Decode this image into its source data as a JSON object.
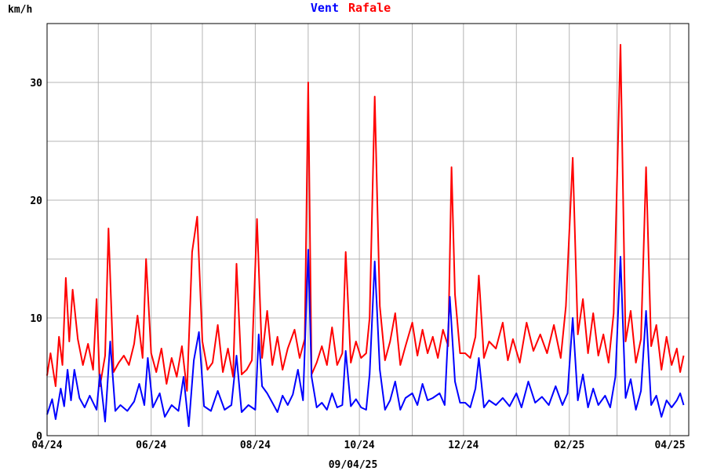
{
  "chart_data": {
    "type": "line",
    "unit_label": "km/h",
    "date_caption": "09/04/25",
    "grid": true,
    "legend_placement": "top-center",
    "x_range": [
      "2024-04-01",
      "2025-04-12"
    ],
    "ylim": [
      0,
      35
    ],
    "y_ticks": [
      0,
      10,
      20,
      30
    ],
    "x_ticks": [
      {
        "date": "2024-04-01",
        "label": "04/24"
      },
      {
        "date": "2024-06-01",
        "label": "06/24"
      },
      {
        "date": "2024-08-01",
        "label": "08/24"
      },
      {
        "date": "2024-10-01",
        "label": "10/24"
      },
      {
        "date": "2024-12-01",
        "label": "12/24"
      },
      {
        "date": "2025-02-01",
        "label": "02/25"
      },
      {
        "date": "2025-04-01",
        "label": "04/25"
      }
    ],
    "series": [
      {
        "name": "Vent",
        "color": "#0000ff",
        "points": [
          [
            "2024-04-01",
            1.8
          ],
          [
            "2024-04-04",
            3.1
          ],
          [
            "2024-04-06",
            1.4
          ],
          [
            "2024-04-09",
            4.0
          ],
          [
            "2024-04-11",
            2.5
          ],
          [
            "2024-04-13",
            5.6
          ],
          [
            "2024-04-15",
            3.0
          ],
          [
            "2024-04-17",
            5.6
          ],
          [
            "2024-04-20",
            3.2
          ],
          [
            "2024-04-23",
            2.4
          ],
          [
            "2024-04-26",
            3.4
          ],
          [
            "2024-04-30",
            2.2
          ],
          [
            "2024-05-02",
            5.2
          ],
          [
            "2024-05-05",
            1.2
          ],
          [
            "2024-05-08",
            8.0
          ],
          [
            "2024-05-11",
            2.1
          ],
          [
            "2024-05-14",
            2.6
          ],
          [
            "2024-05-18",
            2.1
          ],
          [
            "2024-05-22",
            2.9
          ],
          [
            "2024-05-25",
            4.4
          ],
          [
            "2024-05-28",
            2.6
          ],
          [
            "2024-05-30",
            6.6
          ],
          [
            "2024-06-02",
            2.4
          ],
          [
            "2024-06-06",
            3.6
          ],
          [
            "2024-06-09",
            1.6
          ],
          [
            "2024-06-13",
            2.6
          ],
          [
            "2024-06-17",
            2.1
          ],
          [
            "2024-06-20",
            5.0
          ],
          [
            "2024-06-23",
            0.8
          ],
          [
            "2024-06-26",
            6.4
          ],
          [
            "2024-06-29",
            8.8
          ],
          [
            "2024-07-02",
            2.5
          ],
          [
            "2024-07-06",
            2.1
          ],
          [
            "2024-07-10",
            3.8
          ],
          [
            "2024-07-14",
            2.2
          ],
          [
            "2024-07-18",
            2.6
          ],
          [
            "2024-07-21",
            6.8
          ],
          [
            "2024-07-24",
            2.0
          ],
          [
            "2024-07-28",
            2.6
          ],
          [
            "2024-08-01",
            2.2
          ],
          [
            "2024-08-03",
            8.6
          ],
          [
            "2024-08-05",
            4.2
          ],
          [
            "2024-08-08",
            3.6
          ],
          [
            "2024-08-11",
            2.8
          ],
          [
            "2024-08-14",
            2.0
          ],
          [
            "2024-08-17",
            3.4
          ],
          [
            "2024-08-20",
            2.6
          ],
          [
            "2024-08-23",
            3.5
          ],
          [
            "2024-08-26",
            5.6
          ],
          [
            "2024-08-29",
            3.0
          ],
          [
            "2024-09-01",
            15.8
          ],
          [
            "2024-09-03",
            5.0
          ],
          [
            "2024-09-06",
            2.4
          ],
          [
            "2024-09-09",
            2.8
          ],
          [
            "2024-09-12",
            2.2
          ],
          [
            "2024-09-15",
            3.6
          ],
          [
            "2024-09-18",
            2.4
          ],
          [
            "2024-09-21",
            2.6
          ],
          [
            "2024-09-23",
            7.2
          ],
          [
            "2024-09-26",
            2.5
          ],
          [
            "2024-09-29",
            3.1
          ],
          [
            "2024-10-02",
            2.4
          ],
          [
            "2024-10-05",
            2.2
          ],
          [
            "2024-10-07",
            5.2
          ],
          [
            "2024-10-10",
            14.8
          ],
          [
            "2024-10-13",
            5.6
          ],
          [
            "2024-10-16",
            2.2
          ],
          [
            "2024-10-19",
            3.0
          ],
          [
            "2024-10-22",
            4.6
          ],
          [
            "2024-10-25",
            2.2
          ],
          [
            "2024-10-28",
            3.2
          ],
          [
            "2024-11-01",
            3.6
          ],
          [
            "2024-11-04",
            2.6
          ],
          [
            "2024-11-07",
            4.4
          ],
          [
            "2024-11-10",
            3.0
          ],
          [
            "2024-11-13",
            3.2
          ],
          [
            "2024-11-17",
            3.6
          ],
          [
            "2024-11-20",
            2.6
          ],
          [
            "2024-11-23",
            11.8
          ],
          [
            "2024-11-26",
            4.6
          ],
          [
            "2024-11-29",
            2.8
          ],
          [
            "2024-12-02",
            2.8
          ],
          [
            "2024-12-05",
            2.4
          ],
          [
            "2024-12-08",
            4.0
          ],
          [
            "2024-12-10",
            6.6
          ],
          [
            "2024-12-13",
            2.4
          ],
          [
            "2024-12-16",
            3.0
          ],
          [
            "2024-12-20",
            2.6
          ],
          [
            "2024-12-24",
            3.2
          ],
          [
            "2024-12-28",
            2.5
          ],
          [
            "2025-01-01",
            3.6
          ],
          [
            "2025-01-04",
            2.4
          ],
          [
            "2025-01-08",
            4.6
          ],
          [
            "2025-01-12",
            2.8
          ],
          [
            "2025-01-16",
            3.3
          ],
          [
            "2025-01-20",
            2.6
          ],
          [
            "2025-01-24",
            4.2
          ],
          [
            "2025-01-28",
            2.6
          ],
          [
            "2025-01-31",
            3.6
          ],
          [
            "2025-02-03",
            10.0
          ],
          [
            "2025-02-06",
            3.0
          ],
          [
            "2025-02-09",
            5.2
          ],
          [
            "2025-02-12",
            2.4
          ],
          [
            "2025-02-15",
            4.0
          ],
          [
            "2025-02-18",
            2.6
          ],
          [
            "2025-02-22",
            3.4
          ],
          [
            "2025-02-25",
            2.4
          ],
          [
            "2025-02-28",
            5.0
          ],
          [
            "2025-03-03",
            15.2
          ],
          [
            "2025-03-06",
            3.2
          ],
          [
            "2025-03-09",
            4.8
          ],
          [
            "2025-03-12",
            2.2
          ],
          [
            "2025-03-15",
            3.8
          ],
          [
            "2025-03-18",
            10.6
          ],
          [
            "2025-03-21",
            2.6
          ],
          [
            "2025-03-24",
            3.4
          ],
          [
            "2025-03-27",
            1.6
          ],
          [
            "2025-03-30",
            3.0
          ],
          [
            "2025-04-02",
            2.4
          ],
          [
            "2025-04-05",
            3.0
          ],
          [
            "2025-04-07",
            3.6
          ],
          [
            "2025-04-09",
            2.6
          ]
        ]
      },
      {
        "name": "Rafale",
        "color": "#ff0000",
        "points": [
          [
            "2024-04-01",
            5.1
          ],
          [
            "2024-04-03",
            7.0
          ],
          [
            "2024-04-06",
            4.2
          ],
          [
            "2024-04-08",
            8.4
          ],
          [
            "2024-04-10",
            6.0
          ],
          [
            "2024-04-12",
            13.4
          ],
          [
            "2024-04-14",
            8.0
          ],
          [
            "2024-04-16",
            12.4
          ],
          [
            "2024-04-19",
            8.2
          ],
          [
            "2024-04-22",
            6.0
          ],
          [
            "2024-04-25",
            7.8
          ],
          [
            "2024-04-28",
            5.6
          ],
          [
            "2024-04-30",
            11.6
          ],
          [
            "2024-05-02",
            4.2
          ],
          [
            "2024-05-05",
            6.8
          ],
          [
            "2024-05-07",
            17.6
          ],
          [
            "2024-05-10",
            5.4
          ],
          [
            "2024-05-13",
            6.2
          ],
          [
            "2024-05-16",
            6.8
          ],
          [
            "2024-05-19",
            6.0
          ],
          [
            "2024-05-22",
            7.8
          ],
          [
            "2024-05-24",
            10.2
          ],
          [
            "2024-05-27",
            6.6
          ],
          [
            "2024-05-29",
            15.0
          ],
          [
            "2024-06-01",
            7.0
          ],
          [
            "2024-06-04",
            5.4
          ],
          [
            "2024-06-07",
            7.4
          ],
          [
            "2024-06-10",
            4.4
          ],
          [
            "2024-06-13",
            6.6
          ],
          [
            "2024-06-16",
            5.0
          ],
          [
            "2024-06-19",
            7.6
          ],
          [
            "2024-06-22",
            3.8
          ],
          [
            "2024-06-25",
            15.6
          ],
          [
            "2024-06-28",
            18.6
          ],
          [
            "2024-07-01",
            8.0
          ],
          [
            "2024-07-04",
            5.6
          ],
          [
            "2024-07-07",
            6.2
          ],
          [
            "2024-07-10",
            9.4
          ],
          [
            "2024-07-13",
            5.4
          ],
          [
            "2024-07-16",
            7.4
          ],
          [
            "2024-07-19",
            5.0
          ],
          [
            "2024-07-21",
            14.6
          ],
          [
            "2024-07-24",
            5.2
          ],
          [
            "2024-07-27",
            5.6
          ],
          [
            "2024-07-30",
            6.4
          ],
          [
            "2024-08-02",
            18.4
          ],
          [
            "2024-08-05",
            6.6
          ],
          [
            "2024-08-08",
            10.6
          ],
          [
            "2024-08-11",
            6.0
          ],
          [
            "2024-08-14",
            8.4
          ],
          [
            "2024-08-17",
            5.6
          ],
          [
            "2024-08-20",
            7.4
          ],
          [
            "2024-08-24",
            9.0
          ],
          [
            "2024-08-27",
            6.6
          ],
          [
            "2024-08-30",
            8.2
          ],
          [
            "2024-09-01",
            30.0
          ],
          [
            "2024-09-03",
            5.2
          ],
          [
            "2024-09-06",
            6.2
          ],
          [
            "2024-09-09",
            7.6
          ],
          [
            "2024-09-12",
            6.0
          ],
          [
            "2024-09-15",
            9.2
          ],
          [
            "2024-09-18",
            6.0
          ],
          [
            "2024-09-21",
            7.0
          ],
          [
            "2024-09-23",
            15.6
          ],
          [
            "2024-09-26",
            6.2
          ],
          [
            "2024-09-29",
            8.0
          ],
          [
            "2024-10-02",
            6.6
          ],
          [
            "2024-10-05",
            7.0
          ],
          [
            "2024-10-07",
            10.0
          ],
          [
            "2024-10-10",
            28.8
          ],
          [
            "2024-10-13",
            11.0
          ],
          [
            "2024-10-16",
            6.4
          ],
          [
            "2024-10-19",
            8.0
          ],
          [
            "2024-10-22",
            10.4
          ],
          [
            "2024-10-25",
            6.0
          ],
          [
            "2024-10-28",
            7.6
          ],
          [
            "2024-11-01",
            9.6
          ],
          [
            "2024-11-04",
            6.8
          ],
          [
            "2024-11-07",
            9.0
          ],
          [
            "2024-11-10",
            7.0
          ],
          [
            "2024-11-13",
            8.4
          ],
          [
            "2024-11-16",
            6.6
          ],
          [
            "2024-11-19",
            9.0
          ],
          [
            "2024-11-22",
            7.6
          ],
          [
            "2024-11-24",
            22.8
          ],
          [
            "2024-11-26",
            12.0
          ],
          [
            "2024-11-29",
            7.0
          ],
          [
            "2024-12-02",
            7.0
          ],
          [
            "2024-12-05",
            6.6
          ],
          [
            "2024-12-08",
            8.4
          ],
          [
            "2024-12-10",
            13.6
          ],
          [
            "2024-12-13",
            6.6
          ],
          [
            "2024-12-16",
            8.0
          ],
          [
            "2024-12-20",
            7.4
          ],
          [
            "2024-12-24",
            9.6
          ],
          [
            "2024-12-27",
            6.4
          ],
          [
            "2024-12-30",
            8.2
          ],
          [
            "2025-01-03",
            6.2
          ],
          [
            "2025-01-07",
            9.6
          ],
          [
            "2025-01-11",
            7.2
          ],
          [
            "2025-01-15",
            8.6
          ],
          [
            "2025-01-19",
            7.0
          ],
          [
            "2025-01-23",
            9.4
          ],
          [
            "2025-01-27",
            6.6
          ],
          [
            "2025-01-30",
            11.0
          ],
          [
            "2025-02-03",
            23.6
          ],
          [
            "2025-02-06",
            8.6
          ],
          [
            "2025-02-09",
            11.6
          ],
          [
            "2025-02-12",
            7.0
          ],
          [
            "2025-02-15",
            10.4
          ],
          [
            "2025-02-18",
            6.8
          ],
          [
            "2025-02-21",
            8.6
          ],
          [
            "2025-02-24",
            6.2
          ],
          [
            "2025-02-27",
            10.4
          ],
          [
            "2025-03-03",
            33.2
          ],
          [
            "2025-03-06",
            8.0
          ],
          [
            "2025-03-09",
            10.6
          ],
          [
            "2025-03-12",
            6.2
          ],
          [
            "2025-03-15",
            8.2
          ],
          [
            "2025-03-18",
            22.8
          ],
          [
            "2025-03-21",
            7.6
          ],
          [
            "2025-03-24",
            9.4
          ],
          [
            "2025-03-27",
            5.6
          ],
          [
            "2025-03-30",
            8.4
          ],
          [
            "2025-04-02",
            6.0
          ],
          [
            "2025-04-05",
            7.4
          ],
          [
            "2025-04-07",
            5.4
          ],
          [
            "2025-04-09",
            6.8
          ]
        ]
      }
    ]
  }
}
